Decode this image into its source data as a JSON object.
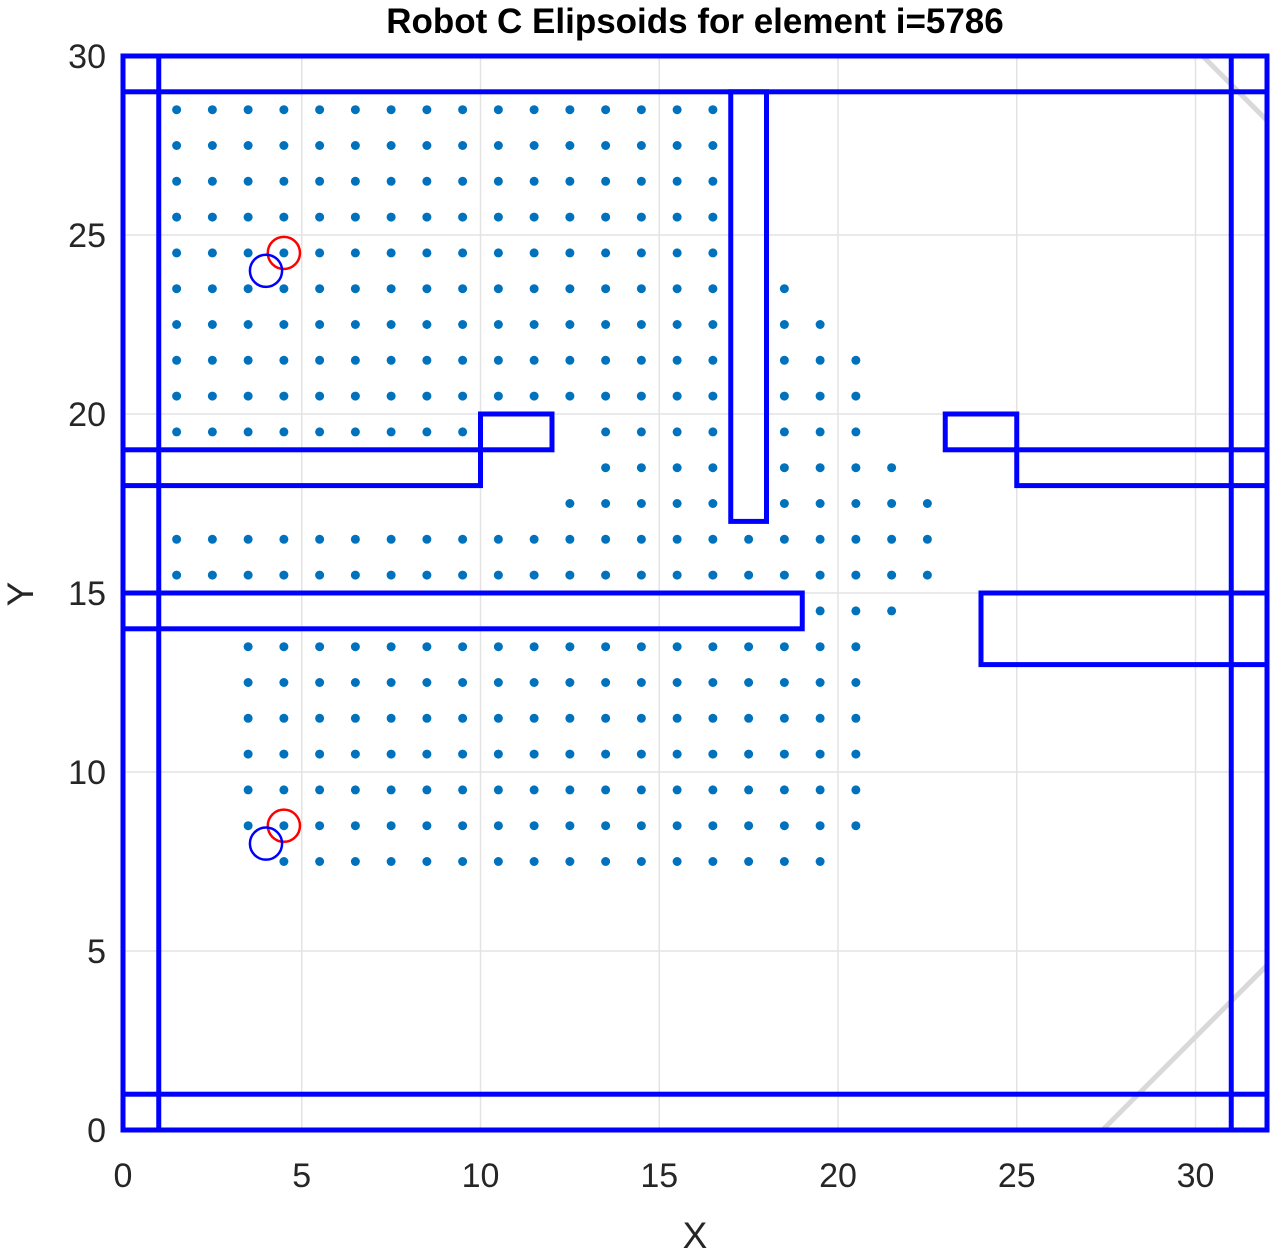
{
  "chart_data": {
    "type": "scatter",
    "title": "Robot C Elipsoids for element i=5786",
    "xlabel": "X",
    "ylabel": "Y",
    "xlim": [
      0,
      32
    ],
    "ylim": [
      0,
      30
    ],
    "xticks": [
      0,
      5,
      10,
      15,
      20,
      25,
      30
    ],
    "yticks": [
      0,
      5,
      10,
      15,
      20,
      25,
      30
    ],
    "grid": true,
    "colors": {
      "walls": "#0000ff",
      "points": "#0072bd",
      "red_circle": "#ff0000",
      "blue_circle": "#0000ff",
      "diagonal": "#d9d9d9",
      "grid": "#e3e3e3"
    },
    "walls": [
      {
        "x0": 0,
        "y0": 0,
        "x1": 1,
        "y1": 30
      },
      {
        "x0": 31,
        "y0": 0,
        "x1": 32,
        "y1": 30
      },
      {
        "x0": 0,
        "y0": 29,
        "x1": 32,
        "y1": 30
      },
      {
        "x0": 0,
        "y0": 0,
        "x1": 32,
        "y1": 1
      },
      {
        "x0": 0,
        "y0": 18,
        "x1": 10,
        "y1": 19
      },
      {
        "x0": 10,
        "y0": 19,
        "x1": 12,
        "y1": 20
      },
      {
        "x0": 17,
        "y0": 17,
        "x1": 18,
        "y1": 29
      },
      {
        "x0": 0,
        "y0": 14,
        "x1": 19,
        "y1": 15
      },
      {
        "x0": 23,
        "y0": 19,
        "x1": 25,
        "y1": 20
      },
      {
        "x0": 25,
        "y0": 18,
        "x1": 32,
        "y1": 19
      },
      {
        "x0": 24,
        "y0": 13,
        "x1": 32,
        "y1": 15
      }
    ],
    "diagonals": [
      {
        "x0": 27.4,
        "y0": 0,
        "x1": 32,
        "y1": 4.6
      },
      {
        "x0": 30.2,
        "y0": 30,
        "x1": 32,
        "y1": 28.2
      }
    ],
    "points_rows": [
      {
        "y": 28.5,
        "ranges": [
          [
            1.5,
            16.5
          ]
        ]
      },
      {
        "y": 27.5,
        "ranges": [
          [
            1.5,
            16.5
          ]
        ]
      },
      {
        "y": 26.5,
        "ranges": [
          [
            1.5,
            16.5
          ]
        ]
      },
      {
        "y": 25.5,
        "ranges": [
          [
            1.5,
            16.5
          ]
        ]
      },
      {
        "y": 24.5,
        "ranges": [
          [
            1.5,
            16.5
          ]
        ]
      },
      {
        "y": 23.5,
        "ranges": [
          [
            1.5,
            16.5
          ],
          [
            18.5,
            18.5
          ]
        ]
      },
      {
        "y": 22.5,
        "ranges": [
          [
            1.5,
            16.5
          ],
          [
            18.5,
            19.5
          ]
        ]
      },
      {
        "y": 21.5,
        "ranges": [
          [
            1.5,
            16.5
          ],
          [
            18.5,
            20.5
          ]
        ]
      },
      {
        "y": 20.5,
        "ranges": [
          [
            1.5,
            16.5
          ],
          [
            18.5,
            20.5
          ]
        ]
      },
      {
        "y": 19.5,
        "ranges": [
          [
            1.5,
            9.5
          ],
          [
            13.5,
            16.5
          ],
          [
            18.5,
            20.5
          ]
        ]
      },
      {
        "y": 18.5,
        "ranges": [
          [
            13.5,
            16.5
          ],
          [
            18.5,
            21.5
          ]
        ]
      },
      {
        "y": 17.5,
        "ranges": [
          [
            12.5,
            16.5
          ],
          [
            18.5,
            22.5
          ]
        ]
      },
      {
        "y": 16.5,
        "ranges": [
          [
            1.5,
            22.5
          ]
        ]
      },
      {
        "y": 15.5,
        "ranges": [
          [
            1.5,
            22.5
          ]
        ]
      },
      {
        "y": 14.5,
        "ranges": [
          [
            19.5,
            21.5
          ]
        ]
      },
      {
        "y": 13.5,
        "ranges": [
          [
            3.5,
            20.5
          ]
        ]
      },
      {
        "y": 12.5,
        "ranges": [
          [
            3.5,
            20.5
          ]
        ]
      },
      {
        "y": 11.5,
        "ranges": [
          [
            3.5,
            20.5
          ]
        ]
      },
      {
        "y": 10.5,
        "ranges": [
          [
            3.5,
            20.5
          ]
        ]
      },
      {
        "y": 9.5,
        "ranges": [
          [
            3.5,
            20.5
          ]
        ]
      },
      {
        "y": 8.5,
        "ranges": [
          [
            3.5,
            20.5
          ]
        ]
      },
      {
        "y": 7.5,
        "ranges": [
          [
            4.5,
            19.5
          ]
        ]
      }
    ],
    "circles": [
      {
        "name": "red",
        "x": 4.5,
        "y": 24.5,
        "r": 0.45
      },
      {
        "name": "blue",
        "x": 4.0,
        "y": 24.0,
        "r": 0.45
      },
      {
        "name": "red",
        "x": 4.5,
        "y": 8.5,
        "r": 0.45
      },
      {
        "name": "blue",
        "x": 4.0,
        "y": 8.0,
        "r": 0.45
      }
    ]
  }
}
